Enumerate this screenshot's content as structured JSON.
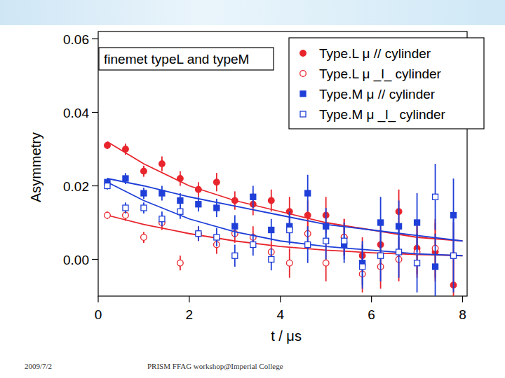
{
  "chart_data": {
    "type": "scatter",
    "title": "finemet typeL and typeM",
    "xlabel": "t / μs",
    "ylabel": "Asymmetry",
    "xlim": [
      0,
      8.1
    ],
    "ylim": [
      -0.01,
      0.062
    ],
    "xticks": [
      0,
      2,
      4,
      6,
      8
    ],
    "yticks": [
      {
        "value": 0,
        "label": "0.00"
      },
      {
        "value": 0.02,
        "label": "0.02"
      },
      {
        "value": 0.04,
        "label": "0.04"
      },
      {
        "value": 0.06,
        "label": "0.06"
      }
    ],
    "grid": false,
    "legend": "top-right",
    "x": [
      0.2,
      0.6,
      1.0,
      1.4,
      1.8,
      2.2,
      2.6,
      3.0,
      3.4,
      3.8,
      4.2,
      4.6,
      5.0,
      5.4,
      5.8,
      6.2,
      6.6,
      7.0,
      7.4,
      7.8
    ],
    "series": [
      {
        "name": "Type.L μ // cylinder",
        "color": "#e8242c",
        "marker": "circle",
        "values": [
          0.031,
          0.03,
          0.024,
          0.026,
          0.022,
          0.019,
          0.021,
          0.016,
          0.015,
          0.016,
          0.013,
          0.012,
          0.012,
          0.006,
          0.001,
          0.004,
          0.013,
          0.003,
          0.002,
          -0.007
        ],
        "errors": [
          0.001,
          0.0015,
          0.0015,
          0.002,
          0.002,
          0.002,
          0.0025,
          0.0025,
          0.003,
          0.003,
          0.004,
          0.004,
          0.005,
          0.005,
          0.005,
          0.006,
          0.006,
          0.007,
          0.008,
          0.009
        ],
        "fit": {
          "x": [
            0.2,
            1,
            2,
            3,
            4,
            5,
            6,
            7,
            8
          ],
          "values": [
            0.032,
            0.026,
            0.02,
            0.016,
            0.013,
            0.01,
            0.008,
            0.006,
            0.005
          ]
        }
      },
      {
        "name": "Type.L μ _l_ cylinder",
        "color": "#e8242c",
        "marker": "open-circle",
        "values": [
          0.012,
          0.012,
          0.006,
          0.01,
          -0.001,
          0.007,
          0.004,
          0.007,
          0.006,
          0.002,
          -0.001,
          0.007,
          -0.001,
          0.006,
          -0.004,
          -0.002,
          0.0,
          0.002,
          0.003,
          0.001
        ],
        "errors": [
          0.001,
          0.0015,
          0.0015,
          0.002,
          0.002,
          0.002,
          0.0025,
          0.0025,
          0.003,
          0.003,
          0.004,
          0.004,
          0.005,
          0.005,
          0.005,
          0.006,
          0.006,
          0.007,
          0.008,
          0.009
        ],
        "fit": {
          "x": [
            0.2,
            1,
            2,
            3,
            4,
            5,
            6,
            7,
            8
          ],
          "values": [
            0.012,
            0.0095,
            0.007,
            0.005,
            0.0035,
            0.0025,
            0.0018,
            0.0013,
            0.001
          ]
        }
      },
      {
        "name": "Type.M μ // cylinder",
        "color": "#1f3fd8",
        "marker": "square",
        "values": [
          0.021,
          0.022,
          0.018,
          0.018,
          0.016,
          0.015,
          0.014,
          0.009,
          0.017,
          0.008,
          0.009,
          0.018,
          0.009,
          0.004,
          -0.001,
          0.01,
          0.009,
          0.01,
          -0.002,
          0.012
        ],
        "errors": [
          0.001,
          0.0015,
          0.0015,
          0.002,
          0.002,
          0.002,
          0.0025,
          0.003,
          0.003,
          0.003,
          0.004,
          0.005,
          0.005,
          0.005,
          0.006,
          0.007,
          0.007,
          0.008,
          0.009,
          0.01
        ],
        "fit": {
          "x": [
            0.2,
            1,
            2,
            3,
            4,
            5,
            6,
            7,
            8
          ],
          "values": [
            0.022,
            0.02,
            0.017,
            0.0145,
            0.012,
            0.0095,
            0.008,
            0.0065,
            0.005
          ]
        }
      },
      {
        "name": "Type.M μ _l_ cylinder",
        "color": "#1f3fd8",
        "marker": "open-square",
        "values": [
          0.02,
          0.014,
          0.014,
          0.011,
          0.013,
          0.007,
          0.006,
          0.001,
          0.004,
          0.0,
          0.008,
          0.004,
          0.005,
          0.005,
          -0.002,
          0.001,
          0.002,
          -0.001,
          0.017,
          0.001
        ],
        "errors": [
          0.001,
          0.0015,
          0.0015,
          0.002,
          0.002,
          0.002,
          0.0025,
          0.003,
          0.003,
          0.003,
          0.004,
          0.005,
          0.005,
          0.005,
          0.006,
          0.007,
          0.007,
          0.008,
          0.009,
          0.01
        ],
        "fit": {
          "x": [
            0.2,
            1,
            2,
            3,
            4,
            5,
            6,
            7,
            8
          ],
          "values": [
            0.021,
            0.016,
            0.011,
            0.0075,
            0.005,
            0.0035,
            0.0025,
            0.0015,
            0.001
          ]
        }
      }
    ]
  },
  "footer": {
    "date": "2009/7/2",
    "text": "PRISM FFAG workshop@Imperial College"
  }
}
